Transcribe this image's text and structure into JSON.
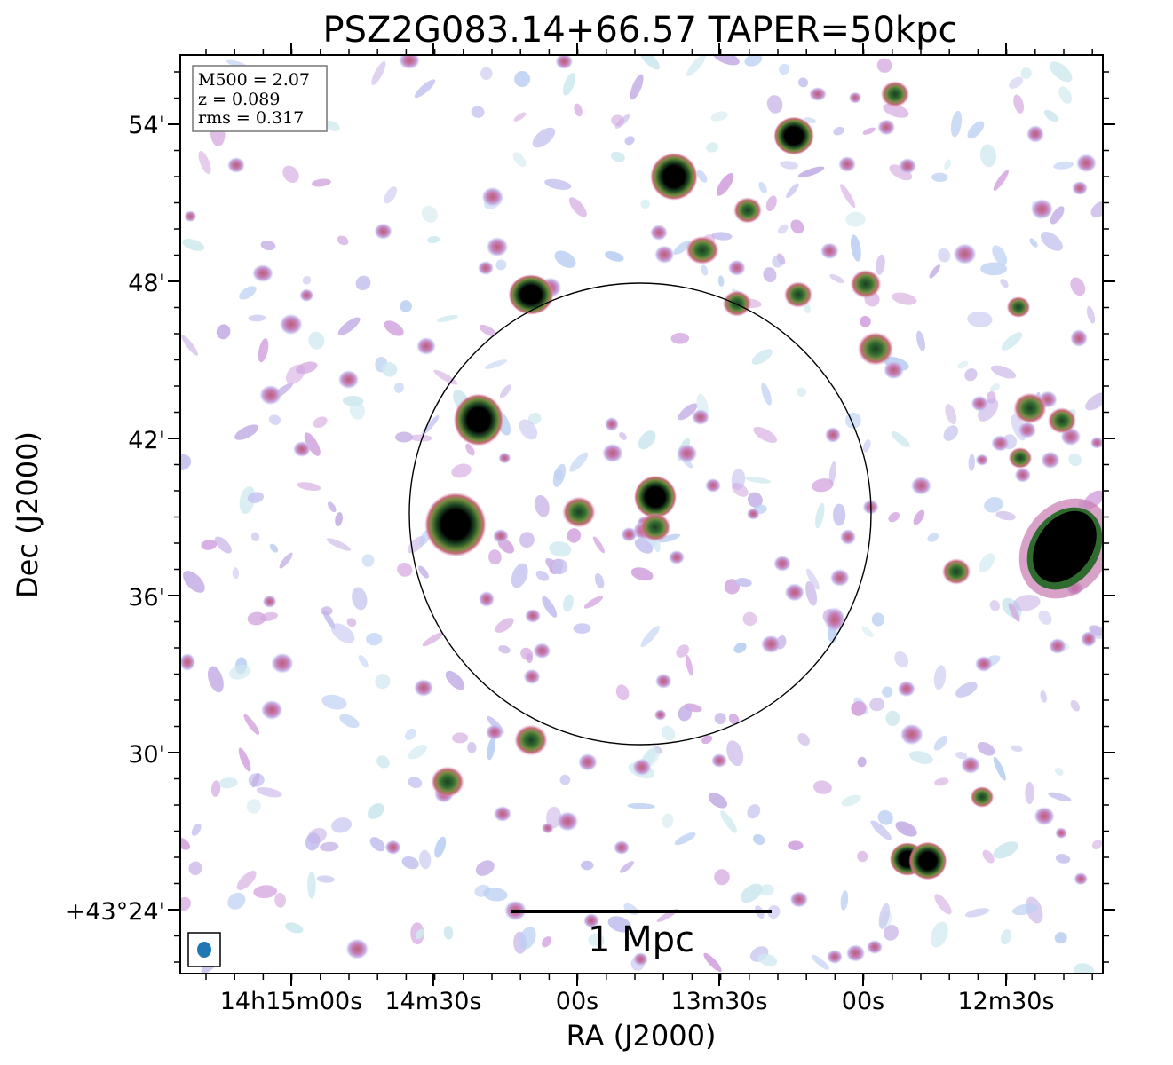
{
  "title": "PSZ2G083.14+66.57 TAPER=50kpc",
  "xlabel": "RA (J2000)",
  "ylabel": "Dec (J2000)",
  "info_box": {
    "line1": "M500 = 2.07",
    "line2": "z = 0.089",
    "line3": "rms = 0.317"
  },
  "scale_bar_label": "1 Mpc",
  "ra_ticks": [
    "14h15m00s",
    "14m30s",
    "00s",
    "13m30s",
    "00s",
    "12m30s"
  ],
  "dec_ticks": [
    "54'",
    "48'",
    "42'",
    "36'",
    "30'",
    "+43°24'"
  ],
  "colors": {
    "background": "#ffffff",
    "beam": "#1f77b4",
    "faint_cyan": "#cfe9ef",
    "light_blue": "#bcd0f2",
    "lavender": "#c6b1e6",
    "magenta": "#c77ab0",
    "rose": "#c96a7a",
    "green": "#2f6b2f",
    "core": "#000000"
  }
}
